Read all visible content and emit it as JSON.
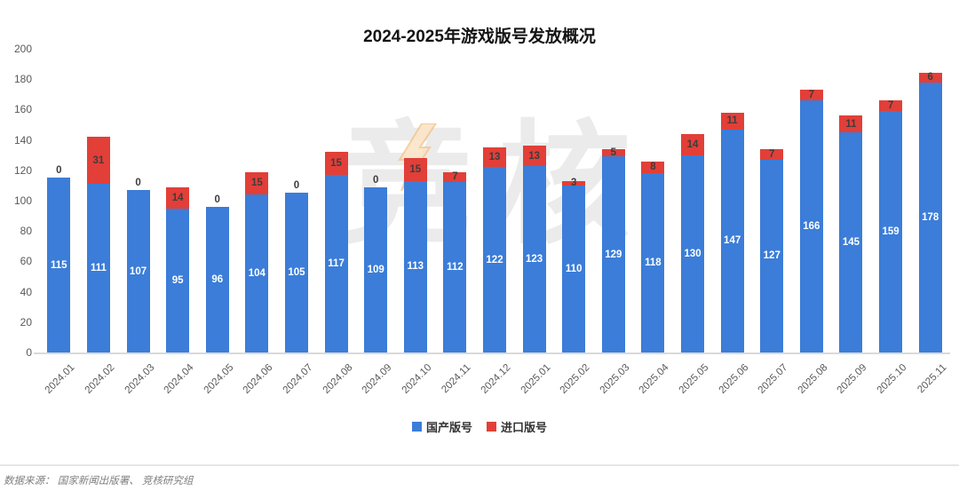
{
  "chart_data": {
    "type": "bar",
    "stacked": true,
    "title": "2024-2025年游戏版号发放概况",
    "categories": [
      "2024.01",
      "2024.02",
      "2024.03",
      "2024.04",
      "2024.05",
      "2024.06",
      "2024.07",
      "2024.08",
      "2024.09",
      "2024.10",
      "2024.11",
      "2024.12",
      "2025.01",
      "2025.02",
      "2025.03",
      "2025.04",
      "2025.05",
      "2025.06",
      "2025.07",
      "2025.08",
      "2025.09",
      "2025.10",
      "2025.11"
    ],
    "series": [
      {
        "name": "国产版号",
        "color": "#3b7dd8",
        "label_color": "#ffffff",
        "values": [
          115,
          111,
          107,
          95,
          96,
          104,
          105,
          117,
          109,
          113,
          112,
          122,
          123,
          110,
          129,
          118,
          130,
          147,
          127,
          166,
          145,
          159,
          178
        ]
      },
      {
        "name": "进口版号",
        "color": "#e23f38",
        "label_color": "#3d3d3d",
        "values": [
          0,
          31,
          0,
          14,
          0,
          15,
          0,
          15,
          0,
          15,
          7,
          13,
          13,
          3,
          5,
          8,
          14,
          11,
          7,
          7,
          11,
          7,
          6
        ]
      }
    ],
    "ylim": [
      0,
      200
    ],
    "yticks": [
      0,
      20,
      40,
      60,
      80,
      100,
      120,
      140,
      160,
      180,
      200
    ],
    "grid": false,
    "legend_position": "bottom",
    "value_labels": true,
    "axis_text_color": "#595959"
  },
  "watermark": {
    "text": "竞核"
  },
  "footer": {
    "source": "数据来源： 国家新闻出版署、 竞核研究组"
  }
}
